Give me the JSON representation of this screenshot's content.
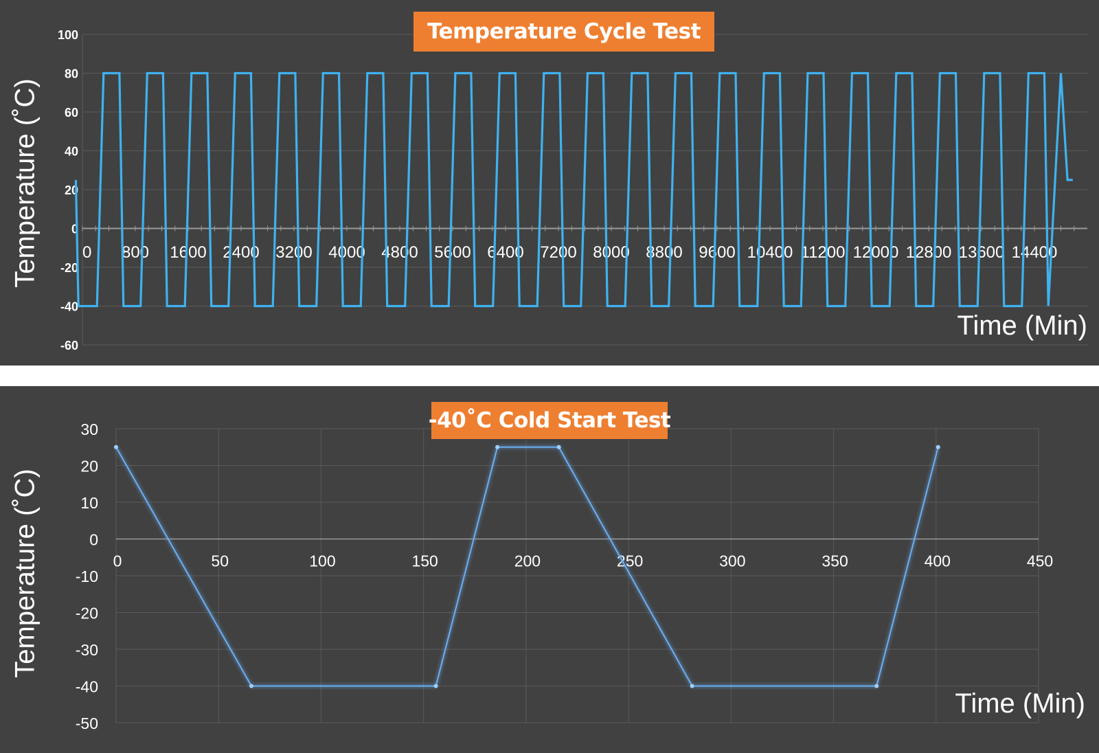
{
  "colors": {
    "panel_bg": "#414141",
    "title_bg": "#ee7f31",
    "line": "#3fb2f0",
    "line_cold": "#6aaef2",
    "grid": "#5a5a5a",
    "text": "#ffffff"
  },
  "chart_data": [
    {
      "type": "line",
      "title": "Temperature Cycle Test",
      "xlabel": "Time (Min)",
      "ylabel": "Temperature  (˚C)",
      "xlim": [
        0,
        15200
      ],
      "ylim": [
        -60,
        100
      ],
      "x_ticks": [
        0,
        800,
        1600,
        2400,
        3200,
        4000,
        4800,
        5600,
        6400,
        7200,
        8000,
        8800,
        9600,
        10400,
        11200,
        12000,
        12800,
        13600,
        14400
      ],
      "y_ticks": [
        100,
        80,
        60,
        40,
        20,
        0,
        -20,
        -40,
        -60
      ],
      "grid": "horizontal",
      "series": [
        {
          "x": [
            -100,
            -60,
            220,
            320,
            560,
            620,
            880,
            980,
            1220,
            1280,
            1550,
            1650,
            1890,
            1950,
            2210,
            2310,
            2550,
            2610,
            2880,
            2980,
            3220,
            3280,
            3540,
            3640,
            3880,
            3940,
            4210,
            4310,
            4550,
            4610,
            4880,
            4980,
            5220,
            5280,
            5540,
            5640,
            5880,
            5940,
            6210,
            6310,
            6550,
            6610,
            6880,
            6980,
            7220,
            7280,
            7540,
            7640,
            7880,
            7940,
            8210,
            8310,
            8550,
            8610,
            8870,
            8970,
            9210,
            9270,
            9540,
            9640,
            9880,
            9940,
            10210,
            10310,
            10550,
            10610,
            10870,
            10970,
            11210,
            11270,
            11540,
            11640,
            11880,
            11940,
            12210,
            12310,
            12550,
            12610,
            12870,
            12970,
            13210,
            13270,
            13540,
            13640,
            13880,
            13940,
            14210,
            14310,
            14550,
            14610,
            14800,
            14900,
            14980
          ],
          "y": [
            25,
            -40,
            -40,
            80,
            80,
            -40,
            -40,
            80,
            80,
            -40,
            -40,
            80,
            80,
            -40,
            -40,
            80,
            80,
            -40,
            -40,
            80,
            80,
            -40,
            -40,
            80,
            80,
            -40,
            -40,
            80,
            80,
            -40,
            -40,
            80,
            80,
            -40,
            -40,
            80,
            80,
            -40,
            -40,
            80,
            80,
            -40,
            -40,
            80,
            80,
            -40,
            -40,
            80,
            80,
            -40,
            -40,
            80,
            80,
            -40,
            -40,
            80,
            80,
            -40,
            -40,
            80,
            80,
            -40,
            -40,
            80,
            80,
            -40,
            -40,
            80,
            80,
            -40,
            -40,
            80,
            80,
            -40,
            -40,
            80,
            80,
            -40,
            -40,
            80,
            80,
            -40,
            -40,
            80,
            80,
            -40,
            -40,
            80,
            80,
            -40,
            80,
            25,
            25
          ]
        }
      ]
    },
    {
      "type": "line",
      "title": "-40˚C Cold Start Test",
      "xlabel": "Time (Min)",
      "ylabel": "Temperature  (˚C)",
      "xlim": [
        0,
        450
      ],
      "ylim": [
        -50,
        30
      ],
      "x_ticks": [
        0,
        50,
        100,
        150,
        200,
        250,
        300,
        350,
        400,
        450
      ],
      "y_ticks": [
        30,
        20,
        10,
        0,
        -10,
        -20,
        -30,
        -40,
        -50
      ],
      "grid": "both",
      "series": [
        {
          "x": [
            0,
            66,
            156,
            186,
            216,
            281,
            371,
            401
          ],
          "y": [
            25,
            -40,
            -40,
            25,
            25,
            -40,
            -40,
            25
          ]
        }
      ]
    }
  ]
}
